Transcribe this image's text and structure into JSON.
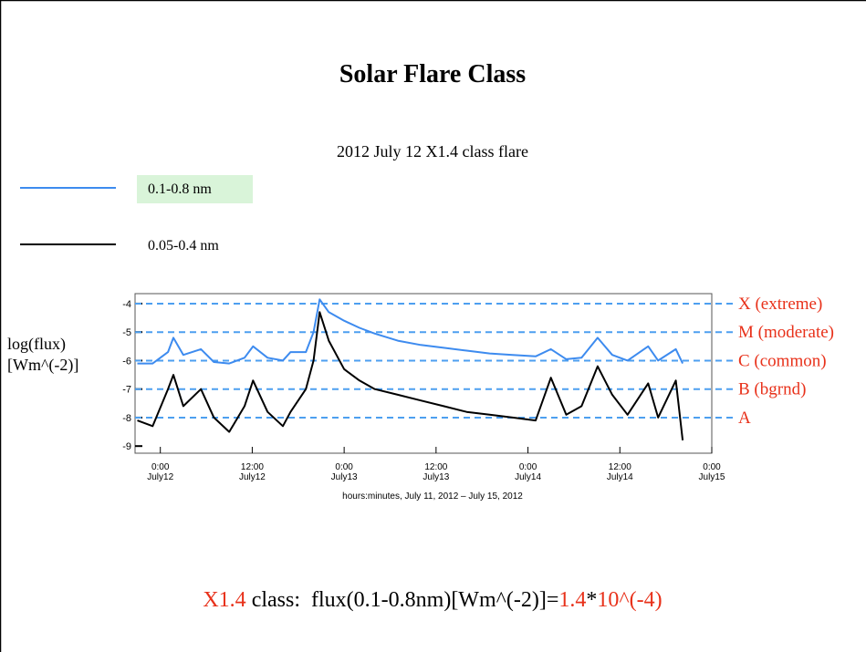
{
  "chart_data": {
    "type": "line",
    "title": "Solar Flare Class",
    "subtitle": "2012 July 12 X1.4 class flare",
    "y_label": [
      "log(flux)",
      "[Wm^(-2)]"
    ],
    "x_label": "hours:minutes, July 11, 2012 – July 15, 2012",
    "x": [
      21,
      23,
      25,
      25.7,
      27,
      29.3,
      31,
      33,
      35,
      36.1,
      38,
      40,
      41,
      43,
      44,
      44.8,
      46,
      48,
      50,
      52,
      55,
      58,
      61,
      64,
      67,
      70,
      73,
      75,
      77,
      79,
      81.1,
      83,
      85,
      87.7,
      89,
      91.3,
      92.2
    ],
    "series": [
      {
        "name": "0.1-0.8 nm",
        "color": "#3d8bef",
        "highlight": "#d9f4d9",
        "values": [
          -6.1,
          -6.1,
          -5.7,
          -5.2,
          -5.8,
          -5.6,
          -6.05,
          -6.1,
          -5.9,
          -5.5,
          -5.9,
          -6.0,
          -5.7,
          -5.7,
          -5.0,
          -3.85,
          -4.3,
          -4.6,
          -4.85,
          -5.05,
          -5.3,
          -5.45,
          -5.55,
          -5.65,
          -5.75,
          -5.8,
          -5.85,
          -5.6,
          -5.95,
          -5.9,
          -5.2,
          -5.8,
          -6.0,
          -5.5,
          -6.0,
          -5.6,
          -6.1
        ]
      },
      {
        "name": "0.05-0.4 nm",
        "color": "#000000",
        "values": [
          -8.1,
          -8.3,
          -7.0,
          -6.5,
          -7.6,
          -7.0,
          -8.0,
          -8.5,
          -7.6,
          -6.7,
          -7.8,
          -8.3,
          -7.8,
          -7.0,
          -6.0,
          -4.3,
          -5.3,
          -6.3,
          -6.7,
          -7.0,
          -7.2,
          -7.4,
          -7.6,
          -7.8,
          -7.9,
          -8.0,
          -8.1,
          -6.6,
          -7.9,
          -7.6,
          -6.2,
          -7.2,
          -7.9,
          -6.8,
          -8.0,
          -6.7,
          -8.8
        ]
      }
    ],
    "xlim": [
      20.7,
      96
    ],
    "xticks": [
      {
        "value": 24,
        "label": "0:00 July12"
      },
      {
        "value": 36,
        "label": "12:00 July12"
      },
      {
        "value": 48,
        "label": "0:00 July13"
      },
      {
        "value": 60,
        "label": "12:00 July13"
      },
      {
        "value": 72,
        "label": "0:00 July14"
      },
      {
        "value": 84,
        "label": "12:00 July14"
      },
      {
        "value": 96,
        "label": "0:00 July15"
      }
    ],
    "ylim": [
      -9.25,
      -3.65
    ],
    "yticks": [
      -9,
      -8,
      -7,
      -6,
      -5,
      -4
    ],
    "thresholds": [
      {
        "value": -4,
        "label": "X (extreme)"
      },
      {
        "value": -5,
        "label": "M (moderate)"
      },
      {
        "value": -6,
        "label": "C (common)"
      },
      {
        "value": -7,
        "label": "B (bgrnd)"
      },
      {
        "value": -8,
        "label": "A"
      }
    ],
    "threshold_color": "#4d9ff0",
    "threshold_label_color": "#e8311a",
    "formula": [
      {
        "text": "X1.4",
        "color": "#e8311a"
      },
      {
        "text": " class:  flux(0.1-0.8nm)[Wm^(-2)]=",
        "color": "#000000"
      },
      {
        "text": "1.4",
        "color": "#e8311a"
      },
      {
        "text": "*",
        "color": "#000000"
      },
      {
        "text": "10^(-4)",
        "color": "#e8311a"
      }
    ]
  }
}
